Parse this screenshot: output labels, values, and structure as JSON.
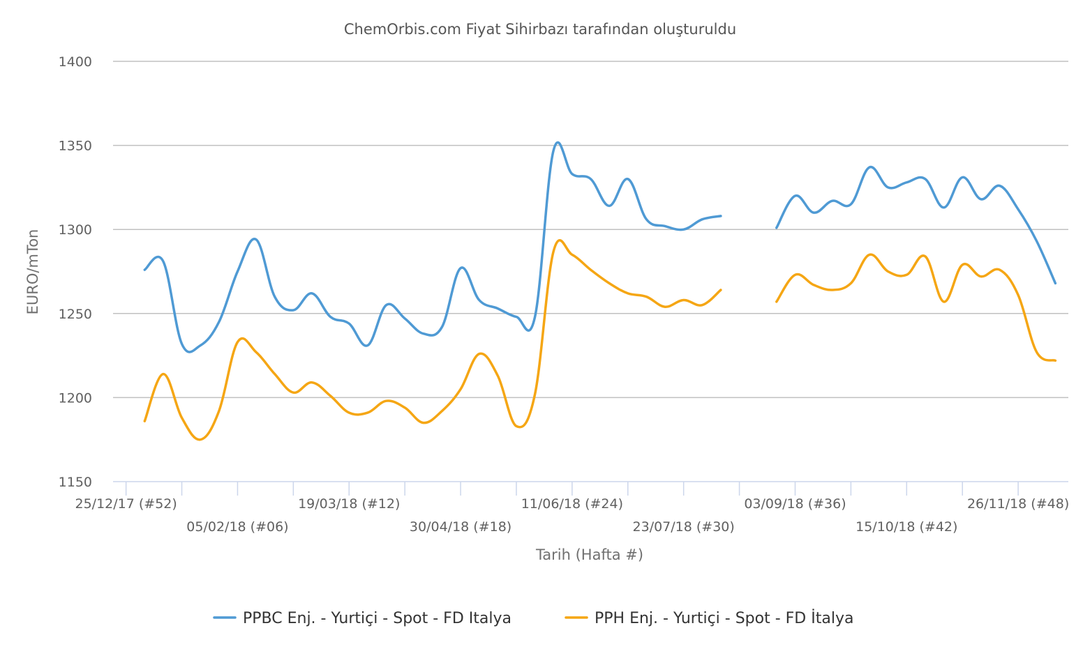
{
  "chart_data": {
    "type": "line",
    "title": "ChemOrbis.com Fiyat Sihirbazı tarafından oluşturuldu",
    "xlabel": "Tarih (Hafta #)",
    "ylabel": "EURO/mTon",
    "ylim": [
      1150,
      1400
    ],
    "yticks": [
      1150,
      1200,
      1250,
      1300,
      1350,
      1400
    ],
    "x_range": [
      -0.7,
      50.7
    ],
    "xtick_labels": [
      {
        "week": 0,
        "label": "25/12/17 (#52)",
        "row": 1
      },
      {
        "week": 6,
        "label": "05/02/18 (#06)",
        "row": 2
      },
      {
        "week": 12,
        "label": "19/03/18 (#12)",
        "row": 1
      },
      {
        "week": 18,
        "label": "30/04/18 (#18)",
        "row": 2
      },
      {
        "week": 24,
        "label": "11/06/18 (#24)",
        "row": 1
      },
      {
        "week": 30,
        "label": "23/07/18 (#30)",
        "row": 2
      },
      {
        "week": 36,
        "label": "03/09/18 (#36)",
        "row": 1
      },
      {
        "week": 42,
        "label": "15/10/18 (#42)",
        "row": 2
      },
      {
        "week": 48,
        "label": "26/11/18 (#48)",
        "row": 1
      }
    ],
    "minor_ticks": [
      0,
      3,
      6,
      9,
      12,
      15,
      18,
      21,
      24,
      27,
      30,
      33,
      36,
      39,
      42,
      45,
      48
    ],
    "grid": true,
    "legend_position": "bottom",
    "series": [
      {
        "name": "PPBC Enj. - Yurtiçi - Spot - FD Italya",
        "color": "#4f9ad4",
        "points": [
          [
            1,
            1276
          ],
          [
            2,
            1281
          ],
          [
            3,
            1232
          ],
          [
            4,
            1231
          ],
          [
            5,
            1245
          ],
          [
            6,
            1275
          ],
          [
            7,
            1294
          ],
          [
            8,
            1260
          ],
          [
            9,
            1252
          ],
          [
            10,
            1262
          ],
          [
            11,
            1248
          ],
          [
            12,
            1244
          ],
          [
            13,
            1231
          ],
          [
            14,
            1255
          ],
          [
            15,
            1247
          ],
          [
            16,
            1238
          ],
          [
            17,
            1242
          ],
          [
            18,
            1277
          ],
          [
            19,
            1258
          ],
          [
            20,
            1253
          ],
          [
            21,
            1248
          ],
          [
            22,
            1248
          ],
          [
            23,
            1347
          ],
          [
            24,
            1333
          ],
          [
            25,
            1330
          ],
          [
            26,
            1314
          ],
          [
            27,
            1330
          ],
          [
            28,
            1306
          ],
          [
            29,
            1302
          ],
          [
            30,
            1300
          ],
          [
            31,
            1306
          ],
          [
            32,
            1308
          ],
          [
            35,
            1301
          ],
          [
            36,
            1320
          ],
          [
            37,
            1310
          ],
          [
            38,
            1317
          ],
          [
            39,
            1315
          ],
          [
            40,
            1337
          ],
          [
            41,
            1325
          ],
          [
            42,
            1328
          ],
          [
            43,
            1330
          ],
          [
            44,
            1313
          ],
          [
            45,
            1331
          ],
          [
            46,
            1318
          ],
          [
            47,
            1326
          ],
          [
            48,
            1312
          ],
          [
            49,
            1293
          ],
          [
            50,
            1268
          ]
        ]
      },
      {
        "name": "PPH Enj. - Yurtiçi - Spot - FD İtalya",
        "color": "#f5a614",
        "points": [
          [
            1,
            1186
          ],
          [
            2,
            1214
          ],
          [
            3,
            1188
          ],
          [
            4,
            1175
          ],
          [
            5,
            1192
          ],
          [
            6,
            1233
          ],
          [
            7,
            1227
          ],
          [
            8,
            1214
          ],
          [
            9,
            1203
          ],
          [
            10,
            1209
          ],
          [
            11,
            1201
          ],
          [
            12,
            1191
          ],
          [
            13,
            1191
          ],
          [
            14,
            1198
          ],
          [
            15,
            1194
          ],
          [
            16,
            1185
          ],
          [
            17,
            1192
          ],
          [
            18,
            1205
          ],
          [
            19,
            1226
          ],
          [
            20,
            1213
          ],
          [
            21,
            1183
          ],
          [
            22,
            1202
          ],
          [
            23,
            1287
          ],
          [
            24,
            1285
          ],
          [
            25,
            1276
          ],
          [
            26,
            1268
          ],
          [
            27,
            1262
          ],
          [
            28,
            1260
          ],
          [
            29,
            1254
          ],
          [
            30,
            1258
          ],
          [
            31,
            1255
          ],
          [
            32,
            1264
          ],
          [
            35,
            1257
          ],
          [
            36,
            1273
          ],
          [
            37,
            1267
          ],
          [
            38,
            1264
          ],
          [
            39,
            1268
          ],
          [
            40,
            1285
          ],
          [
            41,
            1275
          ],
          [
            42,
            1273
          ],
          [
            43,
            1284
          ],
          [
            44,
            1257
          ],
          [
            45,
            1279
          ],
          [
            46,
            1272
          ],
          [
            47,
            1276
          ],
          [
            48,
            1261
          ],
          [
            49,
            1227
          ],
          [
            50,
            1222
          ]
        ]
      }
    ]
  }
}
